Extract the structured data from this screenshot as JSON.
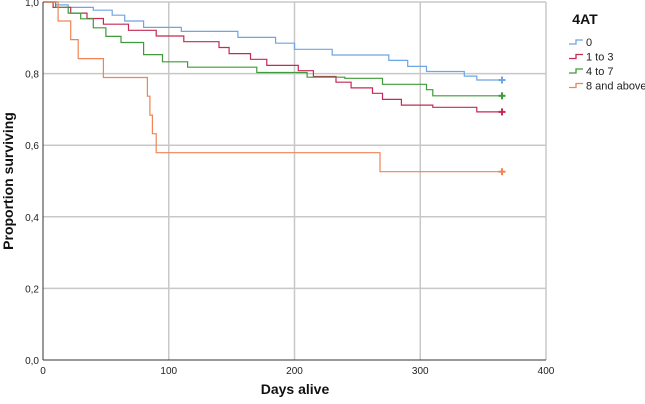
{
  "chart_data": {
    "type": "line",
    "subtype": "kaplan-meier-step",
    "xlabel": "Days alive",
    "ylabel": "Proportion surviving",
    "xlim": [
      0,
      400
    ],
    "ylim": [
      0,
      1
    ],
    "x_ticks": [
      "0",
      "100",
      "200",
      "300",
      "400"
    ],
    "y_ticks": [
      "0,0",
      "0,2",
      "0,4",
      "0,6",
      "0,8",
      "1,0"
    ],
    "grid": true,
    "legend": {
      "title": "4AT",
      "position": "top-right"
    },
    "series": [
      {
        "name": "0",
        "color": "#6ea5e4",
        "censored_at": [
          365
        ],
        "points": [
          [
            0,
            1.0
          ],
          [
            10,
            0.992
          ],
          [
            20,
            0.985
          ],
          [
            40,
            0.977
          ],
          [
            55,
            0.963
          ],
          [
            65,
            0.947
          ],
          [
            80,
            0.929
          ],
          [
            110,
            0.918
          ],
          [
            155,
            0.901
          ],
          [
            185,
            0.885
          ],
          [
            200,
            0.868
          ],
          [
            230,
            0.852
          ],
          [
            275,
            0.837
          ],
          [
            290,
            0.82
          ],
          [
            305,
            0.806
          ],
          [
            335,
            0.793
          ],
          [
            345,
            0.782
          ],
          [
            365,
            0.782
          ]
        ]
      },
      {
        "name": "1 to 3",
        "color": "#c42a52",
        "censored_at": [
          365
        ],
        "points": [
          [
            0,
            1.0
          ],
          [
            8,
            0.985
          ],
          [
            22,
            0.969
          ],
          [
            35,
            0.954
          ],
          [
            48,
            0.938
          ],
          [
            68,
            0.921
          ],
          [
            90,
            0.905
          ],
          [
            112,
            0.889
          ],
          [
            140,
            0.873
          ],
          [
            148,
            0.856
          ],
          [
            165,
            0.84
          ],
          [
            178,
            0.823
          ],
          [
            203,
            0.808
          ],
          [
            215,
            0.792
          ],
          [
            233,
            0.776
          ],
          [
            245,
            0.76
          ],
          [
            262,
            0.745
          ],
          [
            270,
            0.728
          ],
          [
            285,
            0.712
          ],
          [
            310,
            0.706
          ],
          [
            345,
            0.693
          ],
          [
            365,
            0.693
          ]
        ]
      },
      {
        "name": "4 to 7",
        "color": "#3e9a3a",
        "censored_at": [
          365
        ],
        "points": [
          [
            0,
            1.0
          ],
          [
            10,
            0.985
          ],
          [
            20,
            0.969
          ],
          [
            30,
            0.953
          ],
          [
            40,
            0.928
          ],
          [
            50,
            0.904
          ],
          [
            62,
            0.887
          ],
          [
            80,
            0.853
          ],
          [
            95,
            0.833
          ],
          [
            115,
            0.818
          ],
          [
            140,
            0.818
          ],
          [
            170,
            0.803
          ],
          [
            210,
            0.79
          ],
          [
            240,
            0.787
          ],
          [
            270,
            0.77
          ],
          [
            305,
            0.755
          ],
          [
            310,
            0.738
          ],
          [
            365,
            0.738
          ]
        ]
      },
      {
        "name": "8 and above",
        "color": "#f08456",
        "censored_at": [
          365
        ],
        "points": [
          [
            0,
            1.0
          ],
          [
            12,
            0.947
          ],
          [
            22,
            0.895
          ],
          [
            28,
            0.842
          ],
          [
            48,
            0.789
          ],
          [
            83,
            0.737
          ],
          [
            85,
            0.684
          ],
          [
            87,
            0.632
          ],
          [
            90,
            0.579
          ],
          [
            210,
            0.579
          ],
          [
            268,
            0.526
          ],
          [
            365,
            0.526
          ]
        ]
      }
    ]
  }
}
